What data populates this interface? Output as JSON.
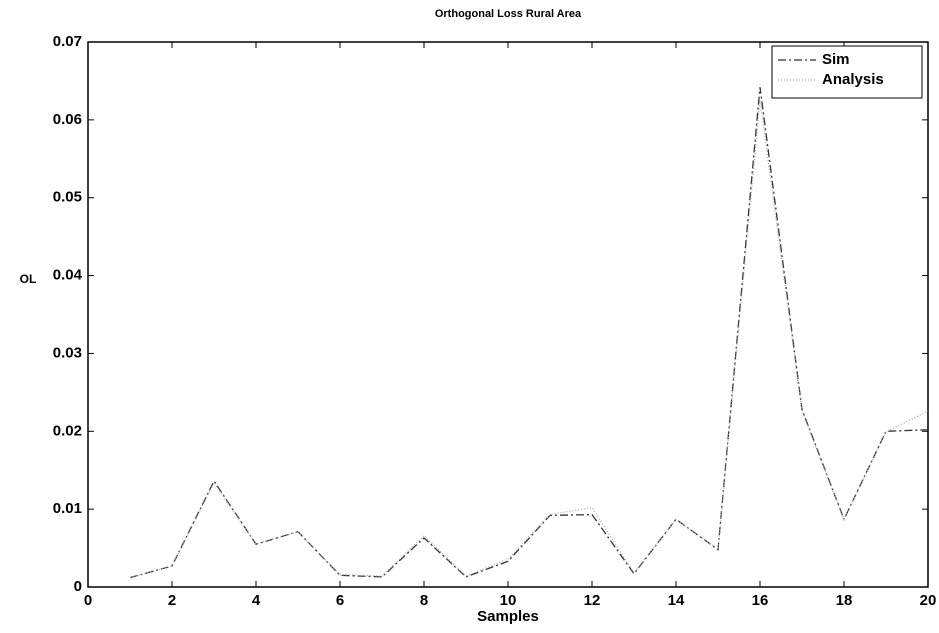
{
  "chart_data": {
    "type": "line",
    "title": "Orthogonal Loss Rural Area",
    "x_label": "Samples",
    "y_label": "OL",
    "x": [
      1,
      2,
      3,
      4,
      5,
      6,
      7,
      8,
      9,
      10,
      11,
      12,
      13,
      14,
      15,
      16,
      17,
      18,
      19,
      20
    ],
    "series": [
      {
        "name": "Sim",
        "color": "#333333",
        "dash": "8,3,2,3",
        "values": [
          0.0012,
          0.0027,
          0.0136,
          0.0055,
          0.0071,
          0.0015,
          0.0013,
          0.0063,
          0.0013,
          0.0033,
          0.0092,
          0.0093,
          0.0017,
          0.0087,
          0.0048,
          0.0642,
          0.0228,
          0.0087,
          0.02,
          0.0202
        ]
      },
      {
        "name": "Analysis",
        "color": "#aaaaaa",
        "dash": "1,2",
        "values": [
          0.0012,
          0.0027,
          0.0134,
          0.0055,
          0.0071,
          0.0016,
          0.0014,
          0.0066,
          0.0014,
          0.0036,
          0.0093,
          0.0102,
          0.0018,
          0.0087,
          0.0048,
          0.0625,
          0.0226,
          0.0087,
          0.0199,
          0.0226
        ]
      }
    ],
    "xlim": [
      0,
      20
    ],
    "xticks": [
      0,
      2,
      4,
      6,
      8,
      10,
      12,
      14,
      16,
      18,
      20
    ],
    "ylim": [
      0,
      0.07
    ],
    "yticks": [
      0,
      0.01,
      0.02,
      0.03,
      0.04,
      0.05,
      0.06,
      0.07
    ],
    "grid": false,
    "legend": "top-right"
  }
}
